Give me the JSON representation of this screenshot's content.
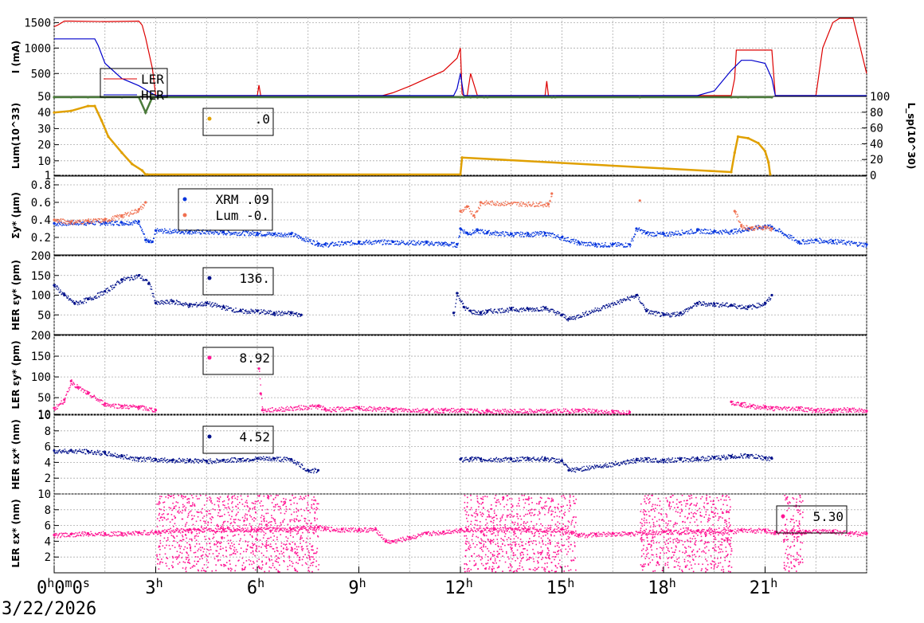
{
  "date": "3/22/2026",
  "chart_data": [
    {
      "type": "line",
      "ylabel": "I (mA)",
      "ylim": [
        50,
        1600
      ],
      "yticks": [
        50,
        500,
        1000,
        1500
      ],
      "series": [
        {
          "name": "LER",
          "color": "#dd0000",
          "x": [
            0,
            0.1,
            0.3,
            0.5,
            1.5,
            2.5,
            2.6,
            2.7,
            2.9,
            3.0,
            3.5,
            4.5,
            5.5,
            6.0,
            6.05,
            6.1,
            6.2,
            7,
            8,
            9,
            9.7,
            10,
            10.5,
            11,
            11.5,
            11.9,
            12.0,
            12.05,
            12.1,
            12.2,
            12.3,
            12.5,
            12.7,
            13,
            13.5,
            14.5,
            14.55,
            14.6,
            14.7,
            15,
            16,
            16.5,
            17,
            17.15,
            17.2,
            17.3,
            18,
            19,
            19.5,
            20,
            20.1,
            20.15,
            20.3,
            20.5,
            21,
            21.2,
            21.3,
            21.5,
            22,
            22.5,
            22.7,
            23,
            23.2,
            23.3,
            23.6,
            24
          ],
          "y": [
            1420,
            1450,
            1530,
            1530,
            1520,
            1530,
            1450,
            1200,
            600,
            60,
            60,
            60,
            60,
            60,
            270,
            60,
            60,
            60,
            60,
            60,
            60,
            120,
            250,
            400,
            550,
            800,
            1000,
            100,
            60,
            60,
            500,
            60,
            60,
            60,
            60,
            60,
            350,
            60,
            60,
            60,
            60,
            60,
            60,
            60,
            60,
            60,
            60,
            60,
            60,
            60,
            400,
            960,
            960,
            960,
            960,
            960,
            60,
            60,
            60,
            60,
            1000,
            1500,
            1590,
            1590,
            1590,
            500
          ]
        },
        {
          "name": "HER",
          "color": "#0000cc",
          "x": [
            0,
            0.3,
            1.2,
            1.3,
            1.5,
            2,
            2.5,
            3,
            5,
            8,
            10,
            11.8,
            11.9,
            12.0,
            12.1,
            15,
            18,
            19,
            19.5,
            20,
            20.3,
            20.6,
            21,
            21.2,
            21.3,
            22,
            24
          ],
          "y": [
            1180,
            1180,
            1180,
            1050,
            700,
            400,
            260,
            60,
            60,
            60,
            60,
            60,
            200,
            500,
            60,
            60,
            60,
            60,
            160,
            560,
            760,
            760,
            700,
            400,
            60,
            60,
            60
          ]
        }
      ]
    },
    {
      "type": "line",
      "ylabel": "Lum(10^33)",
      "y2label": "L_sp(10^30)",
      "ylim": [
        1,
        50
      ],
      "yticks": [
        1,
        10,
        20,
        30,
        40
      ],
      "y2lim": [
        0,
        100
      ],
      "y2ticks": [
        0,
        20,
        40,
        60,
        80,
        100
      ],
      "legend": [
        {
          "label": ".0",
          "color": "#e0a000"
        }
      ],
      "series": [
        {
          "name": "Lum",
          "color": "#e0a000",
          "x": [
            0,
            0.5,
            1.0,
            1.2,
            1.4,
            1.6,
            2.0,
            2.3,
            2.6,
            2.7,
            2.75,
            12.0,
            12.05,
            20.0,
            20.1,
            20.2,
            20.5,
            20.8,
            21.0,
            21.1,
            21.15
          ],
          "y": [
            40,
            41,
            44,
            44,
            35,
            25,
            15,
            8,
            4,
            1,
            1,
            1,
            12,
            3,
            15,
            25,
            24,
            21,
            16,
            9,
            1
          ]
        },
        {
          "name": "Lsp",
          "color": "#4a7a3a",
          "x": [
            0,
            0.5,
            1.0,
            1.5,
            2.0,
            2.5,
            2.7,
            2.9,
            12.0,
            12.1,
            12.3,
            12.5,
            12.7,
            12.8,
            14.7,
            14.8,
            17.3,
            20.0,
            20.2,
            20.5,
            21.0,
            21.2
          ],
          "y": [
            54,
            56,
            57,
            58,
            56,
            52,
            40,
            70,
            60,
            75,
            85,
            60,
            80,
            70,
            70,
            55,
            50,
            70,
            75,
            76,
            74,
            72
          ]
        }
      ]
    },
    {
      "type": "scatter",
      "ylabel": "Σy* (μm)",
      "ylim": [
        0.0,
        0.9
      ],
      "yticks": [
        0.2,
        0.4,
        0.6,
        0.8
      ],
      "legend": [
        {
          "label": "XRM  .09",
          "color": "#0033dd"
        },
        {
          "label": "Lum -0.",
          "color": "#f07050"
        }
      ],
      "series": [
        {
          "name": "XRM",
          "color": "#0033dd",
          "x": [
            0,
            0.5,
            1,
            1.5,
            2,
            2.5,
            2.7,
            2.8,
            2.9,
            3,
            4,
            5,
            6,
            6.5,
            7,
            7.8,
            8,
            9,
            10,
            11,
            11.5,
            11.9,
            12.0,
            12.2,
            12.5,
            12.8,
            13.5,
            14,
            14.5,
            15,
            15.5,
            16,
            16.5,
            17,
            17.2,
            17.5,
            18,
            19,
            19.5,
            20,
            20.5,
            21,
            21.2,
            22,
            22.5,
            23,
            24
          ],
          "y": [
            0.36,
            0.37,
            0.37,
            0.37,
            0.37,
            0.38,
            0.17,
            0.15,
            0.15,
            0.28,
            0.27,
            0.26,
            0.25,
            0.24,
            0.24,
            0.13,
            0.12,
            0.15,
            0.15,
            0.14,
            0.13,
            0.12,
            0.3,
            0.25,
            0.28,
            0.26,
            0.24,
            0.24,
            0.25,
            0.2,
            0.14,
            0.12,
            0.12,
            0.12,
            0.3,
            0.25,
            0.24,
            0.28,
            0.27,
            0.27,
            0.3,
            0.33,
            0.32,
            0.15,
            0.17,
            0.16,
            0.12
          ]
        },
        {
          "name": "Lum",
          "color": "#f07050",
          "x": [
            0,
            0.5,
            1,
            1.5,
            2,
            2.5,
            2.7,
            12.0,
            12.2,
            12.4,
            12.6,
            14.6,
            14.7,
            17.3,
            20.1,
            20.3,
            20.6,
            21.0,
            21.2
          ],
          "y": [
            0.4,
            0.38,
            0.39,
            0.4,
            0.45,
            0.52,
            0.6,
            0.5,
            0.55,
            0.45,
            0.6,
            0.58,
            0.7,
            0.62,
            0.5,
            0.33,
            0.31,
            0.32,
            0.3
          ]
        }
      ]
    },
    {
      "type": "scatter",
      "ylabel": "HER εy* (pm)",
      "ylim": [
        0,
        200
      ],
      "yticks": [
        50,
        100,
        150,
        200
      ],
      "legend": [
        {
          "label": "136.",
          "color": "#00108a"
        }
      ],
      "series": [
        {
          "name": "HER εy*",
          "color": "#00108a",
          "x": [
            0,
            0.3,
            0.6,
            1,
            1.5,
            2,
            2.5,
            2.8,
            3,
            3.5,
            4,
            4.5,
            5,
            5.5,
            6,
            6.5,
            7,
            7.3,
            11.8,
            11.9,
            12.1,
            12.3,
            12.6,
            12.8,
            13.5,
            14,
            14.5,
            15,
            15.2,
            17.2,
            17.5,
            18,
            18.5,
            19,
            19.5,
            20,
            20.5,
            21,
            21.2
          ],
          "y": [
            125,
            100,
            80,
            90,
            110,
            140,
            150,
            130,
            80,
            85,
            75,
            80,
            70,
            60,
            60,
            55,
            55,
            50,
            55,
            105,
            70,
            60,
            55,
            60,
            65,
            65,
            68,
            50,
            40,
            100,
            60,
            50,
            55,
            80,
            78,
            75,
            70,
            80,
            100
          ]
        }
      ]
    },
    {
      "type": "scatter",
      "ylabel": "LER εy* (pm)",
      "ylim": [
        10,
        200
      ],
      "yticks": [
        10,
        50,
        100,
        150,
        200
      ],
      "legend": [
        {
          "label": "8.92",
          "color": "#ff1493"
        }
      ],
      "series": [
        {
          "name": "LER εy*",
          "color": "#ff1493",
          "x": [
            0,
            0.3,
            0.5,
            0.7,
            1,
            1.5,
            2,
            2.5,
            3,
            6.05,
            6.1,
            6.15,
            7.8,
            8,
            9,
            10,
            11,
            11.5,
            12,
            12.8,
            14.7,
            15.5,
            16,
            16.5,
            17,
            20,
            20.3,
            20.6,
            21,
            21.2,
            22,
            22.5,
            23,
            23.5,
            24
          ],
          "y": [
            25,
            45,
            90,
            75,
            60,
            35,
            30,
            28,
            20,
            120,
            60,
            20,
            30,
            22,
            25,
            22,
            20,
            20,
            20,
            18,
            18,
            20,
            18,
            16,
            15,
            40,
            35,
            30,
            28,
            25,
            25,
            20,
            20,
            22,
            18
          ]
        }
      ]
    },
    {
      "type": "scatter",
      "ylabel": "HER εx* (nm)",
      "ylim": [
        0,
        10
      ],
      "yticks": [
        2,
        4,
        6,
        8,
        10
      ],
      "legend": [
        {
          "label": "4.52",
          "color": "#00108a"
        }
      ],
      "series": [
        {
          "name": "HER εx*",
          "color": "#00108a",
          "x": [
            0,
            0.5,
            1,
            1.5,
            2,
            2.5,
            3,
            3.5,
            4,
            4.5,
            5,
            5.5,
            6,
            6.5,
            7,
            7.5,
            7.8,
            12,
            12.3,
            12.6,
            13.5,
            14,
            14.5,
            15,
            15.2,
            17.2,
            17.5,
            18,
            18.5,
            19,
            19.5,
            20,
            20.5,
            21,
            21.2
          ],
          "y": [
            5.5,
            5.5,
            5.4,
            5.2,
            4.8,
            4.5,
            4.4,
            4.3,
            4.3,
            4.2,
            4.3,
            4.4,
            4.5,
            4.5,
            4.4,
            3,
            3,
            4.4,
            4.5,
            4.4,
            4.4,
            4.5,
            4.5,
            4.2,
            3,
            4.3,
            4.4,
            4.3,
            4.4,
            4.5,
            4.6,
            4.8,
            4.9,
            4.6,
            4.5
          ]
        }
      ]
    },
    {
      "type": "scatter",
      "ylabel": "LER εx* (nm)",
      "ylim": [
        0,
        10
      ],
      "yticks": [
        2,
        4,
        6,
        8,
        10
      ],
      "legend": [
        {
          "label": "5.30",
          "color": "#ff1493"
        }
      ],
      "series": [
        {
          "name": "LER εx*",
          "color": "#ff1493",
          "x": [
            0,
            0.5,
            1,
            1.5,
            2,
            2.5,
            3,
            4,
            5,
            6,
            7,
            7.8,
            8,
            8.5,
            9,
            9.5,
            9.8,
            10,
            10.5,
            11,
            11.5,
            12,
            12.2,
            13,
            14,
            15,
            15.5,
            16,
            16.5,
            17,
            18,
            19,
            20,
            20.3,
            21,
            21.3,
            22,
            22.2,
            23,
            23.5,
            24
          ],
          "y": [
            4.8,
            4.9,
            5.0,
            5.0,
            5.0,
            5.1,
            5.2,
            5.5,
            5.5,
            5.5,
            5.5,
            5.8,
            5.6,
            5.5,
            5.5,
            5.5,
            4.0,
            4.0,
            4.5,
            5.0,
            5.2,
            5.5,
            5.5,
            5.5,
            5.5,
            5.5,
            4.8,
            4.9,
            5.0,
            5.0,
            5.2,
            5.3,
            5.3,
            5.4,
            5.4,
            5.2,
            5.2,
            5.3,
            5.3,
            5.0,
            5.0
          ]
        }
      ]
    }
  ],
  "xaxis": {
    "range": [
      0,
      24
    ],
    "ticks": [
      {
        "x": 0,
        "label_main": "0",
        "label_sup": "h",
        "label_rest": "0",
        "label_sup2": "m",
        "label_rest2": "0",
        "label_sup3": "s"
      },
      {
        "x": 3,
        "label_main": "3",
        "label_sup": "h"
      },
      {
        "x": 6,
        "label_main": "6",
        "label_sup": "h"
      },
      {
        "x": 9,
        "label_main": "9",
        "label_sup": "h"
      },
      {
        "x": 12,
        "label_main": "12",
        "label_sup": "h"
      },
      {
        "x": 15,
        "label_main": "15",
        "label_sup": "h"
      },
      {
        "x": 18,
        "label_main": "18",
        "label_sup": "h"
      },
      {
        "x": 21,
        "label_main": "21",
        "label_sup": "h"
      }
    ]
  },
  "legend_top": [
    {
      "label": "LER",
      "color": "#dd0000"
    },
    {
      "label": "HER",
      "color": "#0000cc"
    }
  ]
}
